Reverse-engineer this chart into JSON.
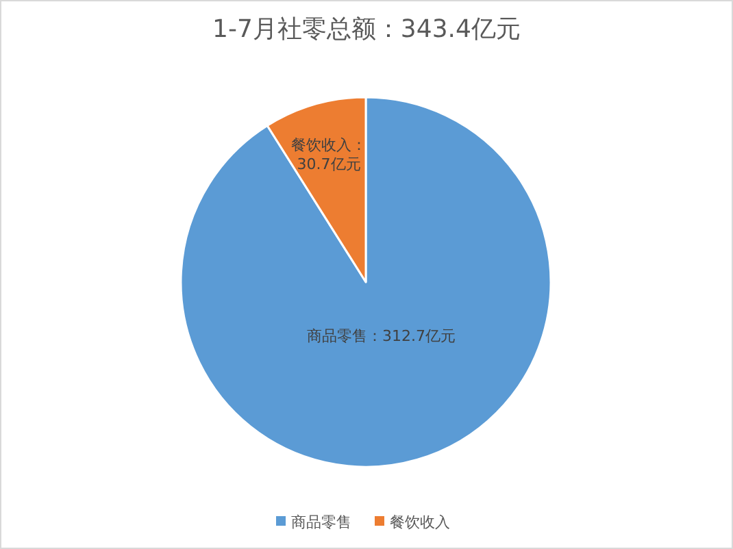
{
  "chart_data": {
    "type": "pie",
    "title": "1-7月社零总额：343.4亿元",
    "categories": [
      "商品零售",
      "餐饮收入"
    ],
    "values": [
      312.7,
      30.7
    ],
    "colors": [
      "#5b9bd5",
      "#ed7d31"
    ],
    "value_labels": [
      "商品零售：312.7亿元",
      "餐饮收入：\n30.7亿元"
    ],
    "legend": "bottom"
  }
}
